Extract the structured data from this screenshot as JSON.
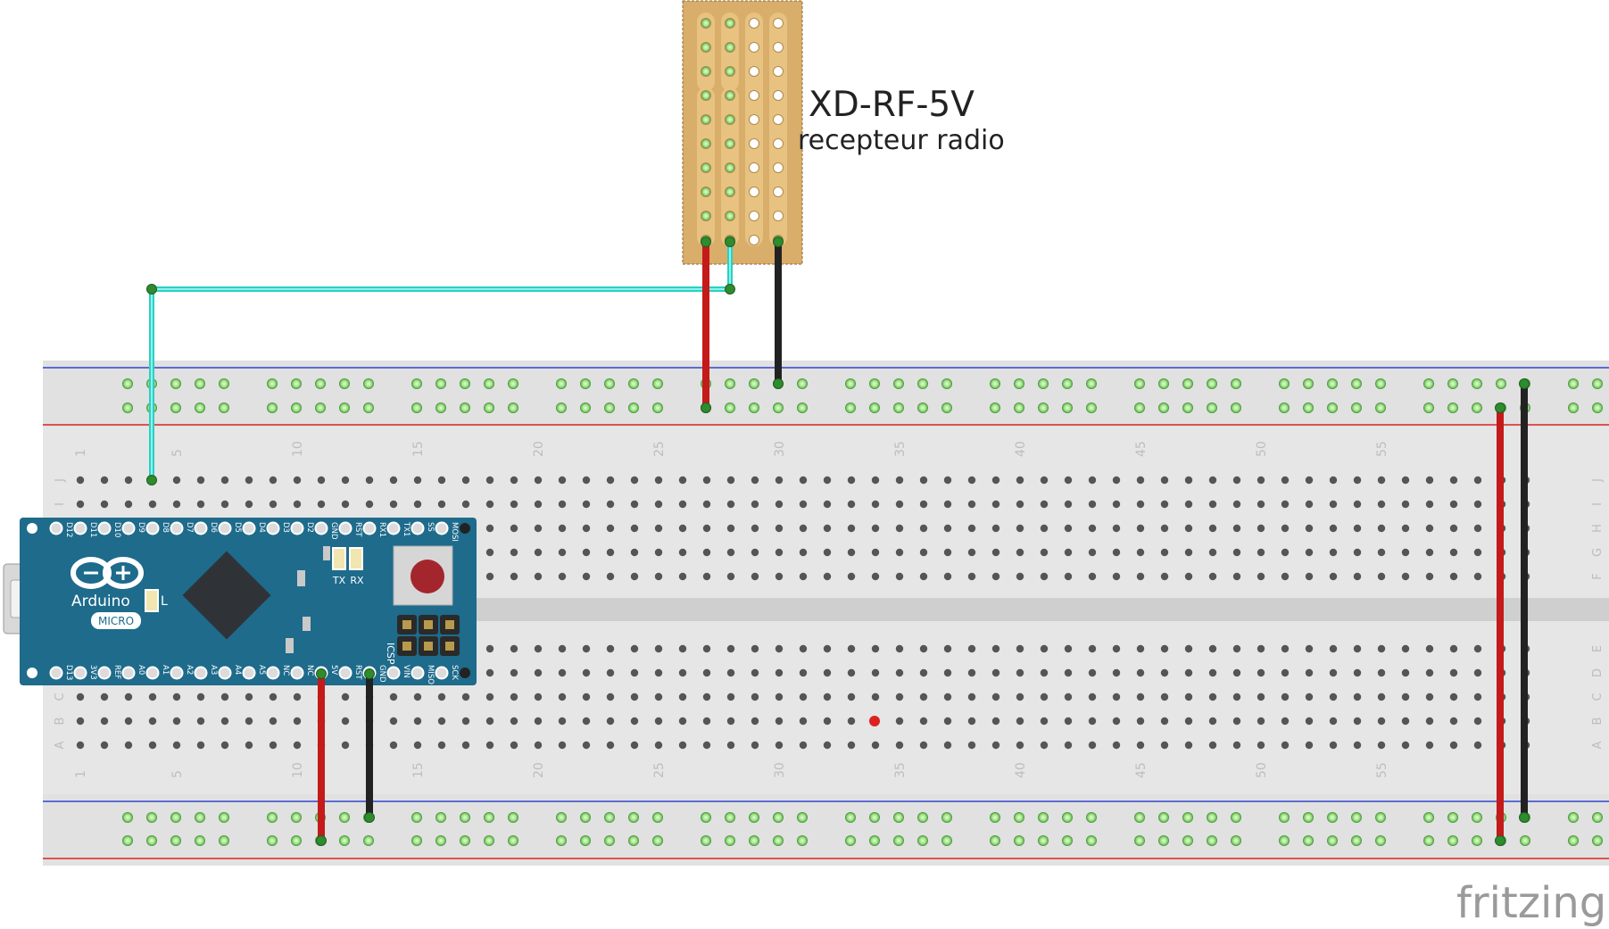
{
  "module": {
    "title": "XD-RF-5V",
    "subtitle": "recepteur radio"
  },
  "arduino": {
    "brand": "Arduino",
    "model": "MICRO",
    "led_l": "L",
    "led_tx": "TX",
    "led_rx": "RX",
    "icsp": "ICSP",
    "top_pins": [
      "D12",
      "D11",
      "D10",
      "D9",
      "D8",
      "D7",
      "D6",
      "D5",
      "D4",
      "D3",
      "D2",
      "GND",
      "RST",
      "RX1",
      "TX1",
      "SS",
      "MOSI"
    ],
    "bottom_pins": [
      "D13",
      "3V3",
      "REF",
      "A0",
      "A1",
      "A2",
      "A3",
      "A4",
      "A5",
      "NC",
      "NC",
      "5V",
      "RST",
      "GND",
      "VIN",
      "MISO",
      "SCK"
    ]
  },
  "breadboard": {
    "row_letters_top": [
      "J",
      "I",
      "H",
      "G",
      "F"
    ],
    "row_letters_bottom": [
      "E",
      "D",
      "C",
      "B",
      "A"
    ],
    "column_numbers": [
      "1",
      "5",
      "10",
      "15",
      "20",
      "25",
      "30",
      "35",
      "40",
      "45",
      "50",
      "55"
    ]
  },
  "watermark": "fritzing",
  "colors": {
    "wire_red": "#c41a1a",
    "wire_black": "#222222",
    "wire_cyan": "#2ad0c4",
    "board_blue": "#1e6b8c",
    "stripboard": "#d9ad6a",
    "breadboard": "#e3e3e3"
  }
}
